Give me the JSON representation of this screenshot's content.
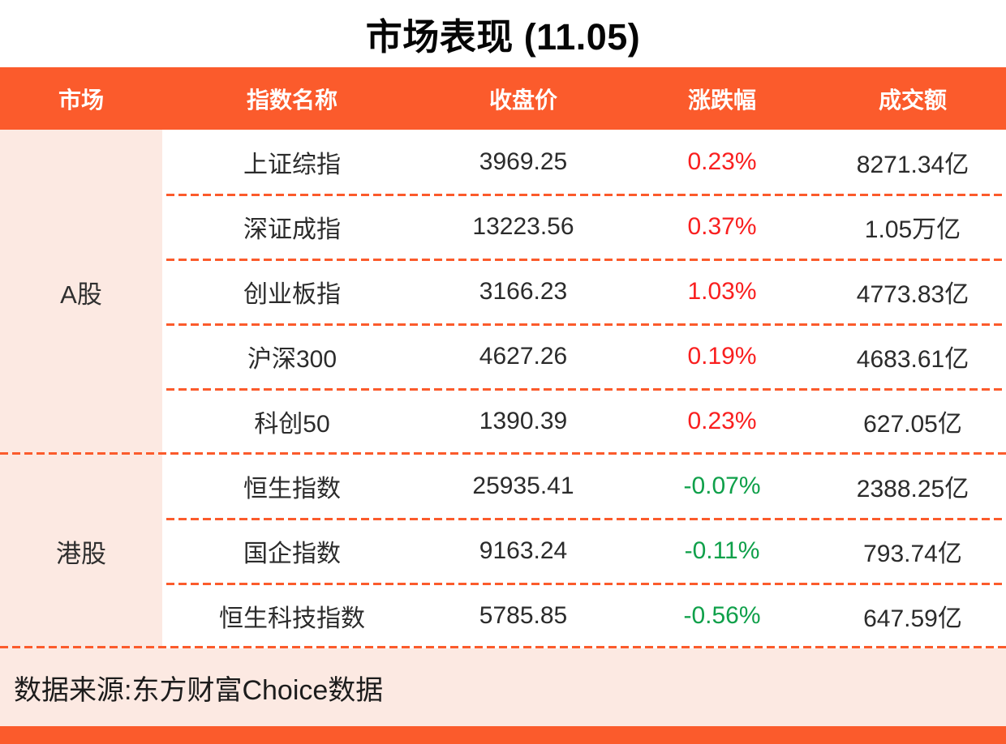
{
  "title": "市场表现 (11.05)",
  "colors": {
    "accent_orange": "#fb5b2c",
    "panel_pink": "#fce9e2",
    "up_red": "#f91f1f",
    "down_green": "#0fa04a"
  },
  "table": {
    "headers": [
      "市场",
      "指数名称",
      "收盘价",
      "涨跌幅",
      "成交额"
    ],
    "groups": [
      {
        "market": "A股",
        "rows": [
          {
            "name": "上证综指",
            "close": "3969.25",
            "change": "0.23%",
            "direction": "up",
            "turnover": "8271.34亿"
          },
          {
            "name": "深证成指",
            "close": "13223.56",
            "change": "0.37%",
            "direction": "up",
            "turnover": "1.05万亿"
          },
          {
            "name": "创业板指",
            "close": "3166.23",
            "change": "1.03%",
            "direction": "up",
            "turnover": "4773.83亿"
          },
          {
            "name": "沪深300",
            "close": "4627.26",
            "change": "0.19%",
            "direction": "up",
            "turnover": "4683.61亿"
          },
          {
            "name": "科创50",
            "close": "1390.39",
            "change": "0.23%",
            "direction": "up",
            "turnover": "627.05亿"
          }
        ]
      },
      {
        "market": "港股",
        "rows": [
          {
            "name": "恒生指数",
            "close": "25935.41",
            "change": "-0.07%",
            "direction": "down",
            "turnover": "2388.25亿"
          },
          {
            "name": "国企指数",
            "close": "9163.24",
            "change": "-0.11%",
            "direction": "down",
            "turnover": "793.74亿"
          },
          {
            "name": "恒生科技指数",
            "close": "5785.85",
            "change": "-0.56%",
            "direction": "down",
            "turnover": "647.59亿"
          }
        ]
      }
    ]
  },
  "footer": {
    "source": "数据来源:东方财富Choice数据"
  },
  "chart_data": {
    "type": "table",
    "title": "市场表现 (11.05)",
    "columns": [
      "市场",
      "指数名称",
      "收盘价",
      "涨跌幅",
      "成交额"
    ],
    "rows": [
      [
        "A股",
        "上证综指",
        3969.25,
        "0.23%",
        "8271.34亿"
      ],
      [
        "A股",
        "深证成指",
        13223.56,
        "0.37%",
        "1.05万亿"
      ],
      [
        "A股",
        "创业板指",
        3166.23,
        "1.03%",
        "4773.83亿"
      ],
      [
        "A股",
        "沪深300",
        4627.26,
        "0.19%",
        "4683.61亿"
      ],
      [
        "A股",
        "科创50",
        1390.39,
        "0.23%",
        "627.05亿"
      ],
      [
        "港股",
        "恒生指数",
        25935.41,
        "-0.07%",
        "2388.25亿"
      ],
      [
        "港股",
        "国企指数",
        9163.24,
        "-0.11%",
        "793.74亿"
      ],
      [
        "港股",
        "恒生科技指数",
        5785.85,
        "-0.56%",
        "647.59亿"
      ]
    ],
    "source_note": "数据来源:东方财富Choice数据"
  }
}
